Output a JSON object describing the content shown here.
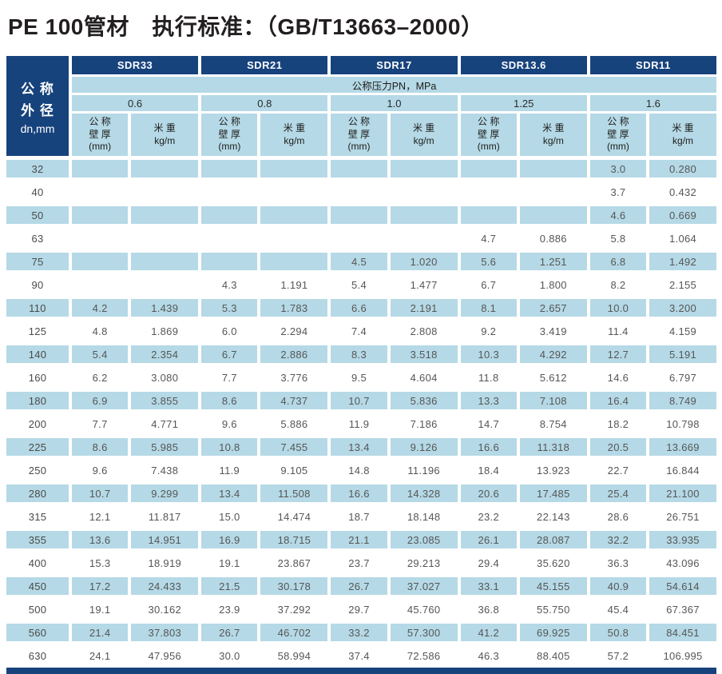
{
  "title": "PE 100管材　执行标准：（GB/T13663–2000）",
  "colors": {
    "navy": "#17437d",
    "light_blue": "#b5d9e6"
  },
  "table": {
    "corner": {
      "line1": "公 称",
      "line2": "外 径",
      "line3": "dn,mm"
    },
    "sdr_headers": [
      "SDR33",
      "SDR21",
      "SDR17",
      "SDR13.6",
      "SDR11"
    ],
    "pressure_label": "公称压力PN，MPa",
    "pressure_values": [
      "0.6",
      "0.8",
      "1.0",
      "1.25",
      "1.6"
    ],
    "subcol": {
      "wall_line1": "公 称",
      "wall_line2": "壁 厚",
      "wall_line3": "(mm)",
      "weight_line1": "米 重",
      "weight_line2": "kg/m"
    },
    "rows": [
      {
        "dn": "32",
        "values": [
          "",
          "",
          "",
          "",
          "",
          "",
          "",
          "",
          "3.0",
          "0.280"
        ]
      },
      {
        "dn": "40",
        "values": [
          "",
          "",
          "",
          "",
          "",
          "",
          "",
          "",
          "3.7",
          "0.432"
        ]
      },
      {
        "dn": "50",
        "values": [
          "",
          "",
          "",
          "",
          "",
          "",
          "",
          "",
          "4.6",
          "0.669"
        ]
      },
      {
        "dn": "63",
        "values": [
          "",
          "",
          "",
          "",
          "",
          "",
          "4.7",
          "0.886",
          "5.8",
          "1.064"
        ]
      },
      {
        "dn": "75",
        "values": [
          "",
          "",
          "",
          "",
          "4.5",
          "1.020",
          "5.6",
          "1.251",
          "6.8",
          "1.492"
        ]
      },
      {
        "dn": "90",
        "values": [
          "",
          "",
          "4.3",
          "1.191",
          "5.4",
          "1.477",
          "6.7",
          "1.800",
          "8.2",
          "2.155"
        ]
      },
      {
        "dn": "110",
        "values": [
          "4.2",
          "1.439",
          "5.3",
          "1.783",
          "6.6",
          "2.191",
          "8.1",
          "2.657",
          "10.0",
          "3.200"
        ]
      },
      {
        "dn": "125",
        "values": [
          "4.8",
          "1.869",
          "6.0",
          "2.294",
          "7.4",
          "2.808",
          "9.2",
          "3.419",
          "11.4",
          "4.159"
        ]
      },
      {
        "dn": "140",
        "values": [
          "5.4",
          "2.354",
          "6.7",
          "2.886",
          "8.3",
          "3.518",
          "10.3",
          "4.292",
          "12.7",
          "5.191"
        ]
      },
      {
        "dn": "160",
        "values": [
          "6.2",
          "3.080",
          "7.7",
          "3.776",
          "9.5",
          "4.604",
          "11.8",
          "5.612",
          "14.6",
          "6.797"
        ]
      },
      {
        "dn": "180",
        "values": [
          "6.9",
          "3.855",
          "8.6",
          "4.737",
          "10.7",
          "5.836",
          "13.3",
          "7.108",
          "16.4",
          "8.749"
        ]
      },
      {
        "dn": "200",
        "values": [
          "7.7",
          "4.771",
          "9.6",
          "5.886",
          "11.9",
          "7.186",
          "14.7",
          "8.754",
          "18.2",
          "10.798"
        ]
      },
      {
        "dn": "225",
        "values": [
          "8.6",
          "5.985",
          "10.8",
          "7.455",
          "13.4",
          "9.126",
          "16.6",
          "11.318",
          "20.5",
          "13.669"
        ]
      },
      {
        "dn": "250",
        "values": [
          "9.6",
          "7.438",
          "11.9",
          "9.105",
          "14.8",
          "11.196",
          "18.4",
          "13.923",
          "22.7",
          "16.844"
        ]
      },
      {
        "dn": "280",
        "values": [
          "10.7",
          "9.299",
          "13.4",
          "11.508",
          "16.6",
          "14.328",
          "20.6",
          "17.485",
          "25.4",
          "21.100"
        ]
      },
      {
        "dn": "315",
        "values": [
          "12.1",
          "11.817",
          "15.0",
          "14.474",
          "18.7",
          "18.148",
          "23.2",
          "22.143",
          "28.6",
          "26.751"
        ]
      },
      {
        "dn": "355",
        "values": [
          "13.6",
          "14.951",
          "16.9",
          "18.715",
          "21.1",
          "23.085",
          "26.1",
          "28.087",
          "32.2",
          "33.935"
        ]
      },
      {
        "dn": "400",
        "values": [
          "15.3",
          "18.919",
          "19.1",
          "23.867",
          "23.7",
          "29.213",
          "29.4",
          "35.620",
          "36.3",
          "43.096"
        ]
      },
      {
        "dn": "450",
        "values": [
          "17.2",
          "24.433",
          "21.5",
          "30.178",
          "26.7",
          "37.027",
          "33.1",
          "45.155",
          "40.9",
          "54.614"
        ]
      },
      {
        "dn": "500",
        "values": [
          "19.1",
          "30.162",
          "23.9",
          "37.292",
          "29.7",
          "45.760",
          "36.8",
          "55.750",
          "45.4",
          "67.367"
        ]
      },
      {
        "dn": "560",
        "values": [
          "21.4",
          "37.803",
          "26.7",
          "46.702",
          "33.2",
          "57.300",
          "41.2",
          "69.925",
          "50.8",
          "84.451"
        ]
      },
      {
        "dn": "630",
        "values": [
          "24.1",
          "47.956",
          "30.0",
          "58.994",
          "37.4",
          "72.586",
          "46.3",
          "88.405",
          "57.2",
          "106.995"
        ]
      }
    ]
  }
}
